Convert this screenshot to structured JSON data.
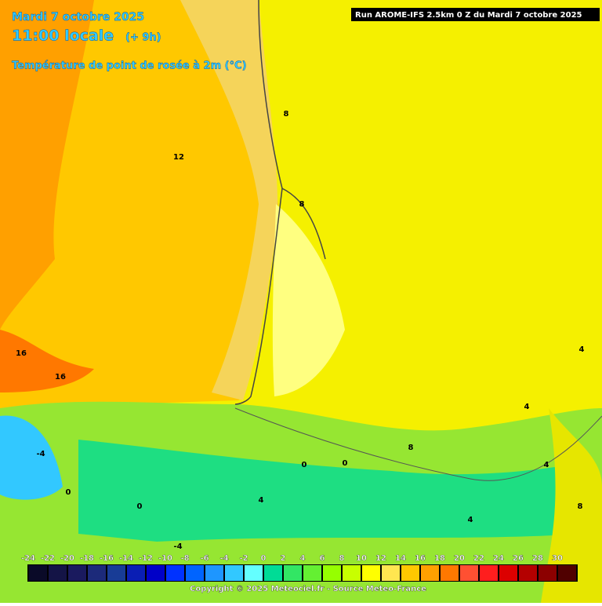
{
  "header": {
    "date": "Mardi 7 octobre 2025",
    "time": "11:00 locale",
    "lead": "(+ 9h)",
    "parameter": "Température de point de rosée à 2m (°C)",
    "run": "Run AROME-IFS 2.5km 0 Z du Mardi 7 octobre 2025"
  },
  "contour_labels": [
    8,
    12,
    8,
    16,
    16,
    4,
    4,
    8,
    0,
    0,
    4,
    -4,
    0,
    4,
    0,
    4,
    8,
    -4
  ],
  "legend": {
    "ticks": [
      -24,
      -22,
      -20,
      -18,
      -16,
      -14,
      -12,
      -10,
      -8,
      -6,
      -4,
      -2,
      0,
      2,
      4,
      6,
      8,
      10,
      12,
      14,
      16,
      18,
      20,
      22,
      24,
      26,
      28,
      30
    ],
    "colors": [
      "#0a0a28",
      "#141446",
      "#1a1a5e",
      "#1c2a7a",
      "#183c96",
      "#0a1eb4",
      "#0000c8",
      "#0032ff",
      "#0064ff",
      "#1e96ff",
      "#32c8ff",
      "#64ffff",
      "#00dc96",
      "#32e664",
      "#64f032",
      "#96ff00",
      "#c8ff00",
      "#ffff00",
      "#ffe650",
      "#ffc800",
      "#ffa000",
      "#ff7800",
      "#ff5032",
      "#ff1e1e",
      "#dc0000",
      "#b40000",
      "#8c0000",
      "#500000"
    ]
  },
  "footer": {
    "copyright": "Copyright © 2025 Meteociel.fr - Source Meteo-France"
  }
}
